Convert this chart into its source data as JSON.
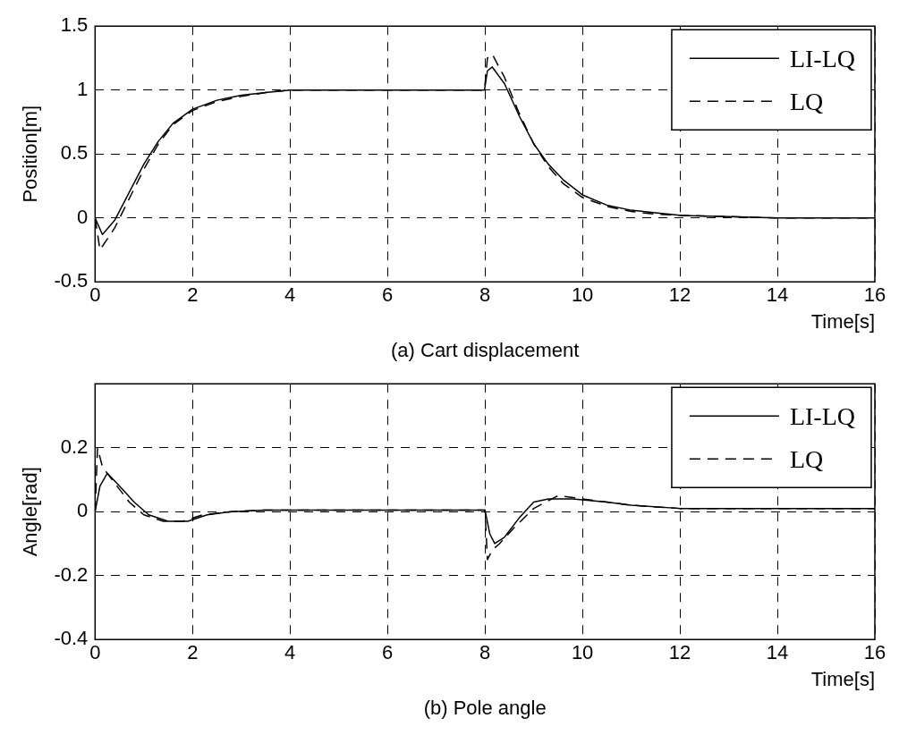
{
  "chart_data": [
    {
      "type": "line",
      "xlabel": "Time[s]",
      "ylabel": "Position[m]",
      "annotations": [
        "(a) Cart displacement"
      ],
      "xlim": [
        0,
        16
      ],
      "xticks": [
        0,
        2,
        4,
        6,
        8,
        10,
        12,
        14,
        16
      ],
      "ylim": [
        -0.5,
        1.5
      ],
      "yticks": [
        -0.5,
        0,
        0.5,
        1,
        1.5
      ],
      "grid": true,
      "legend": "top right",
      "series": [
        {
          "name": "LI-LQ",
          "color": "#000000",
          "line_style": "solid",
          "x": [
            0,
            0.15,
            0.4,
            0.7,
            1,
            1.3,
            1.6,
            2,
            2.5,
            3,
            3.5,
            4,
            5,
            6,
            7,
            7.99,
            8.05,
            8.15,
            8.4,
            8.7,
            9,
            9.3,
            9.6,
            10,
            10.5,
            11,
            11.5,
            12,
            13,
            14,
            16
          ],
          "values": [
            0,
            -0.13,
            -0.02,
            0.2,
            0.42,
            0.6,
            0.74,
            0.85,
            0.92,
            0.96,
            0.98,
            1,
            1,
            1,
            1,
            1,
            1.15,
            1.18,
            1.05,
            0.8,
            0.58,
            0.42,
            0.3,
            0.18,
            0.1,
            0.06,
            0.04,
            0.02,
            0.01,
            0,
            0
          ]
        },
        {
          "name": "LQ",
          "color": "#000000",
          "line_style": "dashed",
          "x": [
            0,
            0.1,
            0.4,
            0.7,
            1,
            1.3,
            1.6,
            2,
            2.5,
            3,
            3.5,
            4,
            5,
            6,
            7,
            7.99,
            8.05,
            8.15,
            8.4,
            8.7,
            9,
            9.3,
            9.6,
            10,
            10.5,
            11,
            11.5,
            12,
            13,
            14,
            16
          ],
          "values": [
            0,
            -0.25,
            -0.08,
            0.15,
            0.38,
            0.58,
            0.73,
            0.84,
            0.91,
            0.95,
            0.98,
            1,
            1,
            1,
            1,
            1,
            1.25,
            1.28,
            1.1,
            0.82,
            0.58,
            0.4,
            0.27,
            0.16,
            0.09,
            0.05,
            0.03,
            0.02,
            0.01,
            0,
            0
          ]
        }
      ]
    },
    {
      "type": "line",
      "xlabel": "Time[s]",
      "ylabel": "Angle[rad]",
      "annotations": [
        "(b) Pole angle"
      ],
      "xlim": [
        0,
        16
      ],
      "xticks": [
        0,
        2,
        4,
        6,
        8,
        10,
        12,
        14,
        16
      ],
      "ylim": [
        -0.4,
        0.4
      ],
      "yticks": [
        -0.4,
        -0.2,
        0,
        0.2
      ],
      "grid": true,
      "legend": "top right",
      "series": [
        {
          "name": "LI-LQ",
          "color": "#000000",
          "line_style": "solid",
          "x": [
            0,
            0.1,
            0.25,
            0.5,
            0.8,
            1.1,
            1.5,
            1.9,
            2.3,
            2.8,
            3.5,
            5,
            8,
            8.1,
            8.2,
            8.4,
            8.7,
            9,
            9.3,
            9.8,
            10.5,
            11,
            12,
            14,
            16
          ],
          "values": [
            0,
            0.08,
            0.12,
            0.08,
            0.03,
            -0.01,
            -0.03,
            -0.03,
            -0.01,
            0,
            0.005,
            0.005,
            0.005,
            -0.07,
            -0.1,
            -0.08,
            -0.02,
            0.03,
            0.04,
            0.04,
            0.03,
            0.02,
            0.01,
            0.01,
            0.01
          ]
        },
        {
          "name": "LQ",
          "color": "#000000",
          "line_style": "dashed",
          "x": [
            0,
            0.05,
            0.15,
            0.4,
            0.7,
            1,
            1.4,
            1.8,
            2.2,
            2.8,
            3.5,
            5,
            8,
            8.05,
            8.15,
            8.3,
            8.6,
            9,
            9.5,
            10,
            10.5,
            11,
            12,
            14,
            16
          ],
          "values": [
            0,
            0.2,
            0.14,
            0.09,
            0.03,
            -0.01,
            -0.03,
            -0.03,
            -0.01,
            0,
            0.005,
            0.005,
            0.005,
            -0.15,
            -0.12,
            -0.1,
            -0.05,
            0.01,
            0.05,
            0.04,
            0.03,
            0.02,
            0.01,
            0.01,
            0.01
          ]
        }
      ]
    }
  ]
}
